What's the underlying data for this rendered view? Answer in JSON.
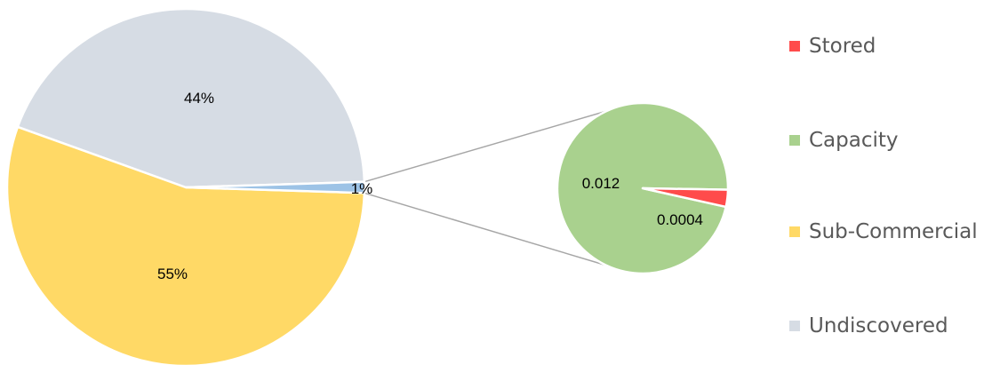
{
  "chart_data": {
    "type": "pie",
    "subtype": "pie-of-pie",
    "main_pie": {
      "slices": [
        {
          "ref": "Undiscovered",
          "value": 44,
          "label": "44%",
          "color": "#d6dce4"
        },
        {
          "ref": "Sub-Commercial",
          "value": 55,
          "label": "55%",
          "color": "#ffd966"
        },
        {
          "ref": "Other",
          "value": 1,
          "label": "1%",
          "color": "#9dc3e6"
        }
      ]
    },
    "secondary_pie": {
      "slices": [
        {
          "ref": "Capacity",
          "value": 0.012,
          "label": "0.012",
          "color": "#a9d18e"
        },
        {
          "ref": "Stored",
          "value": 0.0004,
          "label": "0.0004",
          "color": "#ff4b4b"
        }
      ]
    },
    "legend": {
      "position": "right",
      "items": [
        {
          "label": "Stored",
          "color": "#ff4b4b"
        },
        {
          "label": "Capacity",
          "color": "#a9d18e"
        },
        {
          "label": "Sub-Commercial",
          "color": "#ffd966"
        },
        {
          "label": "Undiscovered",
          "color": "#d6dce4"
        }
      ]
    },
    "connector_color": "#a6a6a6"
  }
}
